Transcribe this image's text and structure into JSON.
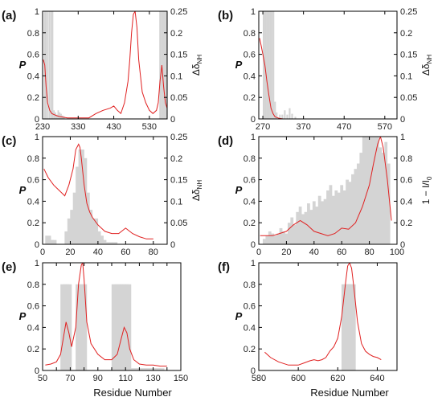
{
  "figure": {
    "xlabel": "Residue Number",
    "left_ylabel": "P",
    "right_label_dnh": "Δδ",
    "right_label_dnh_sub": "NH",
    "right_label_intensity": "1 − I/I",
    "right_label_intensity_sub": "0"
  },
  "chart_data": [
    {
      "panel": "(a)",
      "type": "bar+line",
      "xlim": [
        230,
        580
      ],
      "xticks": [
        230,
        330,
        430,
        530
      ],
      "ylim_left": [
        0,
        1
      ],
      "yticks_left": [
        "0",
        "0.2",
        "0.4",
        "0.6",
        "0.8",
        "1"
      ],
      "ylim_right": [
        0,
        0.25
      ],
      "yticks_right": [
        "0",
        "0.05",
        "0.1",
        "0.15",
        "0.2",
        "0.25"
      ],
      "right_axis": "dnh",
      "bars": {
        "x": [
          236,
          240,
          245,
          250,
          255,
          258,
          262,
          266,
          270,
          274,
          278,
          282,
          286,
          290,
          560,
          564,
          568,
          572,
          576,
          579
        ],
        "values": [
          0.25,
          0.25,
          0.25,
          0.25,
          0.25,
          0.25,
          0.02,
          0.015,
          0.01,
          0.02,
          0.015,
          0.012,
          0.008,
          0.006,
          0.25,
          0.25,
          0.25,
          0.25,
          0.25,
          0.25
        ]
      },
      "line": {
        "x": [
          232,
          236,
          240,
          244,
          250,
          256,
          262,
          270,
          280,
          300,
          330,
          360,
          380,
          400,
          420,
          430,
          440,
          450,
          460,
          470,
          475,
          480,
          485,
          490,
          495,
          500,
          510,
          520,
          530,
          540,
          550,
          555,
          560,
          565,
          570,
          575,
          580
        ],
        "values": [
          0.55,
          0.5,
          0.3,
          0.15,
          0.08,
          0.05,
          0.04,
          0.03,
          0.02,
          0.01,
          0.01,
          0.01,
          0.05,
          0.08,
          0.1,
          0.12,
          0.08,
          0.05,
          0.15,
          0.35,
          0.55,
          0.8,
          0.97,
          1.0,
          0.85,
          0.55,
          0.25,
          0.15,
          0.08,
          0.05,
          0.08,
          0.15,
          0.35,
          0.5,
          0.3,
          0.15,
          0.1
        ]
      }
    },
    {
      "panel": "(b)",
      "type": "bar+line",
      "xlim": [
        260,
        600
      ],
      "xticks": [
        270,
        370,
        470,
        570
      ],
      "ylim_left": [
        0,
        1
      ],
      "yticks_left": [
        "0",
        "0.2",
        "0.4",
        "0.6",
        "0.8",
        "1"
      ],
      "ylim_right": [
        0,
        0.25
      ],
      "yticks_right": [
        "0",
        "0.05",
        "0.1",
        "0.15",
        "0.2",
        "0.25"
      ],
      "right_axis": "dnh",
      "bars": {
        "x": [
          272,
          276,
          280,
          284,
          288,
          292,
          296,
          300,
          304,
          312,
          318,
          324,
          330,
          336,
          342,
          350
        ],
        "values": [
          0.25,
          0.25,
          0.25,
          0.25,
          0.25,
          0.25,
          0.25,
          0.04,
          0.015,
          0.01,
          0.01,
          0.02,
          0.01,
          0.025,
          0.012,
          0.005
        ]
      },
      "line": {
        "x": [
          262,
          266,
          270,
          275,
          280,
          285,
          290,
          295,
          300,
          310,
          320,
          600
        ],
        "values": [
          0.75,
          0.68,
          0.6,
          0.5,
          0.35,
          0.22,
          0.1,
          0.05,
          0.02,
          0.005,
          0.0,
          0.0
        ]
      }
    },
    {
      "panel": "(c)",
      "type": "bar+line",
      "xlim": [
        0,
        90
      ],
      "xticks": [
        0,
        20,
        40,
        60,
        80
      ],
      "ylim_left": [
        0,
        1
      ],
      "yticks_left": [
        "0",
        "0.2",
        "0.4",
        "0.6",
        "0.8",
        "1"
      ],
      "ylim_right": [
        0,
        0.25
      ],
      "yticks_right": [
        "0",
        "0.05",
        "0.1",
        "0.15",
        "0.2",
        "0.25"
      ],
      "right_axis": "dnh",
      "bars": {
        "x": [
          4,
          6,
          8,
          18,
          20,
          22,
          24,
          26,
          28,
          30,
          32,
          34,
          36,
          38,
          40,
          42,
          44,
          48,
          52
        ],
        "values": [
          0.02,
          0.01,
          0.01,
          0.03,
          0.06,
          0.08,
          0.12,
          0.18,
          0.22,
          0.2,
          0.12,
          0.08,
          0.05,
          0.06,
          0.03,
          0.02,
          0.01,
          0.005,
          0.005
        ]
      },
      "line": {
        "x": [
          1,
          4,
          8,
          12,
          16,
          19,
          22,
          24,
          26,
          27,
          28,
          30,
          32,
          34,
          36,
          40,
          45,
          50,
          55,
          60,
          65,
          70,
          75,
          80
        ],
        "values": [
          0.7,
          0.62,
          0.55,
          0.5,
          0.45,
          0.55,
          0.7,
          0.88,
          0.93,
          0.9,
          0.8,
          0.55,
          0.38,
          0.3,
          0.25,
          0.18,
          0.12,
          0.1,
          0.1,
          0.15,
          0.1,
          0.07,
          0.05,
          0.05
        ]
      }
    },
    {
      "panel": "(d)",
      "type": "bar+line",
      "xlim": [
        0,
        100
      ],
      "xticks": [
        0,
        20,
        40,
        60,
        80,
        100
      ],
      "ylim_left": [
        0,
        1
      ],
      "yticks_left": [
        "0",
        "0.2",
        "0.4",
        "0.6",
        "0.8",
        "1"
      ],
      "ylim_right": [
        0,
        1
      ],
      "yticks_right": [
        "0",
        "0.2",
        "0.4",
        "0.6",
        "0.8",
        "1"
      ],
      "right_axis": "intensity",
      "bars": {
        "x": [
          4,
          6,
          8,
          10,
          12,
          14,
          16,
          18,
          20,
          22,
          24,
          26,
          28,
          30,
          32,
          34,
          36,
          38,
          40,
          42,
          44,
          46,
          48,
          50,
          52,
          54,
          56,
          58,
          60,
          62,
          64,
          66,
          68,
          70,
          72,
          74,
          76,
          78,
          80,
          82,
          84,
          86,
          88,
          90,
          92,
          94
        ],
        "values": [
          0.05,
          0.08,
          0.12,
          0.1,
          0.08,
          0.1,
          0.15,
          0.12,
          0.1,
          0.2,
          0.25,
          0.18,
          0.3,
          0.35,
          0.28,
          0.3,
          0.38,
          0.32,
          0.4,
          0.35,
          0.45,
          0.4,
          0.42,
          0.5,
          0.55,
          0.45,
          0.5,
          0.48,
          0.55,
          0.5,
          0.6,
          0.58,
          0.65,
          0.7,
          0.75,
          0.85,
          1.0,
          1.0,
          1.0,
          1.0,
          1.0,
          1.0,
          0.9,
          0.85,
          0.95,
          0.75
        ]
      },
      "line": {
        "x": [
          1,
          5,
          10,
          15,
          20,
          25,
          30,
          35,
          40,
          45,
          50,
          55,
          60,
          65,
          70,
          75,
          80,
          83,
          86,
          88,
          90,
          93,
          96
        ],
        "values": [
          0.08,
          0.08,
          0.08,
          0.1,
          0.12,
          0.18,
          0.22,
          0.18,
          0.12,
          0.1,
          0.08,
          0.1,
          0.15,
          0.14,
          0.2,
          0.35,
          0.55,
          0.75,
          0.93,
          1.0,
          0.9,
          0.6,
          0.22
        ]
      }
    },
    {
      "panel": "(e)",
      "type": "bar+line",
      "xlim": [
        50,
        150
      ],
      "xticks": [
        50,
        70,
        90,
        110,
        130,
        150
      ],
      "extra_ticks": [
        60,
        80,
        100,
        120,
        140
      ],
      "ylim_left": [
        0,
        1
      ],
      "yticks_left": [
        "0",
        "0.2",
        "0.4",
        "0.6",
        "0.8",
        "1"
      ],
      "ylim_right": [
        0,
        1
      ],
      "yticks_right": [],
      "right_axis": "none",
      "bars": {
        "x": [
          65,
          67,
          69,
          76,
          78,
          80,
          102,
          104,
          106,
          108,
          110,
          112,
          114,
          116,
          118,
          120,
          122,
          124,
          126,
          128,
          130,
          132,
          134,
          136
        ],
        "values": [
          0.8,
          0.8,
          0.8,
          0.8,
          0.8,
          0.8,
          0.8,
          0.8,
          0.8,
          0.8,
          0.8,
          0.8,
          0.02,
          0.02,
          0.02,
          0.02,
          0.02,
          0.02,
          0.02,
          0.02,
          0.02,
          0.02,
          0.02,
          0.02
        ]
      },
      "line": {
        "x": [
          52,
          56,
          60,
          63,
          65,
          67,
          69,
          71,
          74,
          76,
          78,
          79,
          80,
          82,
          85,
          90,
          95,
          100,
          104,
          107,
          109,
          111,
          113,
          116,
          120,
          125,
          130,
          135,
          140
        ],
        "values": [
          0.05,
          0.06,
          0.08,
          0.15,
          0.3,
          0.45,
          0.35,
          0.22,
          0.4,
          0.8,
          0.98,
          1.0,
          0.85,
          0.45,
          0.25,
          0.15,
          0.1,
          0.1,
          0.15,
          0.3,
          0.4,
          0.35,
          0.2,
          0.1,
          0.06,
          0.05,
          0.05,
          0.04,
          0.04
        ]
      }
    },
    {
      "panel": "(f)",
      "type": "bar+line",
      "xlim": [
        580,
        650
      ],
      "xticks": [
        580,
        600,
        620,
        640
      ],
      "ylim_left": [
        0,
        1
      ],
      "yticks_left": [
        "0",
        "0.2",
        "0.4",
        "0.6",
        "0.8",
        "1"
      ],
      "ylim_right": [
        0,
        1
      ],
      "yticks_right": [],
      "right_axis": "none",
      "bars": {
        "x": [
          624,
          625,
          626,
          627
        ],
        "values": [
          0.8,
          0.8,
          0.8,
          0.8
        ]
      },
      "line": {
        "x": [
          583,
          586,
          590,
          595,
          600,
          603,
          606,
          608,
          610,
          612,
          614,
          616,
          618,
          620,
          622,
          624,
          625,
          626,
          627,
          628,
          630,
          632,
          634,
          636,
          638,
          640,
          642
        ],
        "values": [
          0.17,
          0.12,
          0.08,
          0.05,
          0.05,
          0.07,
          0.09,
          0.1,
          0.09,
          0.1,
          0.12,
          0.18,
          0.22,
          0.3,
          0.5,
          0.82,
          0.97,
          1.0,
          0.95,
          0.8,
          0.45,
          0.25,
          0.18,
          0.15,
          0.13,
          0.12,
          0.1
        ]
      }
    }
  ]
}
